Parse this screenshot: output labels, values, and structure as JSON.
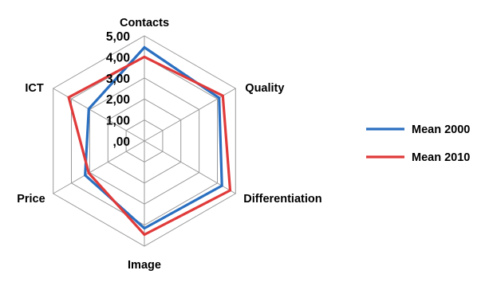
{
  "chart_data": {
    "type": "radar",
    "axes": [
      "Contacts",
      "Quality",
      "Differentiation",
      "Image",
      "Price",
      "ICT"
    ],
    "tick_labels": [
      ",00",
      "1,00",
      "2,00",
      "3,00",
      "4,00",
      "5,00"
    ],
    "range": [
      0,
      5
    ],
    "grid": true,
    "legend_position": "right",
    "series": [
      {
        "name": "Mean 2000",
        "color": "#2a6fc0",
        "values": [
          4.45,
          4.1,
          4.25,
          4.15,
          3.25,
          3.05
        ]
      },
      {
        "name": "Mean 2010",
        "color": "#e03a3a",
        "values": [
          4.0,
          4.3,
          4.7,
          4.45,
          3.05,
          4.15
        ]
      }
    ]
  }
}
